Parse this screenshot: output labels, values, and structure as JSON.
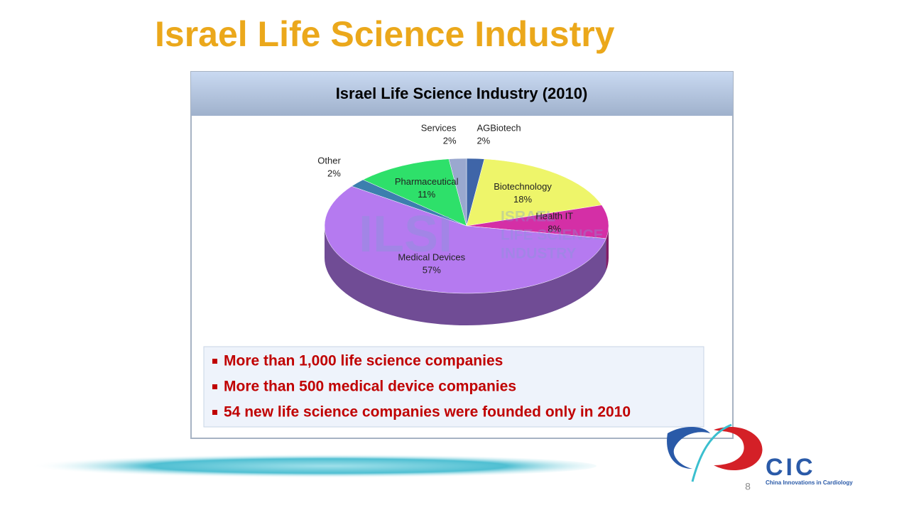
{
  "slide": {
    "title": "Israel Life Science Industry",
    "bullets": [
      "More than 1,000 life science companies",
      "More than 500 medical device companies",
      "54 new life science companies were founded only in 2010"
    ],
    "watermark": [
      "ILSI",
      "ISRAEL",
      "LIFE SCIENCE",
      "INDUSTRY"
    ],
    "logo": {
      "name": "CIC",
      "tagline": "China Innovations in Cardiology"
    },
    "page_number": "8"
  },
  "chart_data": {
    "type": "pie",
    "title": "Israel Life Science Industry (2010)",
    "categories": [
      "AGBiotech",
      "Biotechnology",
      "Health IT",
      "Medical Devices",
      "Other",
      "Pharmaceutical",
      "Services"
    ],
    "values": [
      2,
      18,
      8,
      57,
      2,
      11,
      2
    ],
    "value_labels": [
      "2%",
      "18%",
      "8%",
      "57%",
      "2%",
      "11%",
      "2%"
    ],
    "colors": [
      "#3f65a8",
      "#eef56a",
      "#d42fa6",
      "#b57af0",
      "#3c7fae",
      "#2ee06a",
      "#9aa8cf"
    ]
  }
}
